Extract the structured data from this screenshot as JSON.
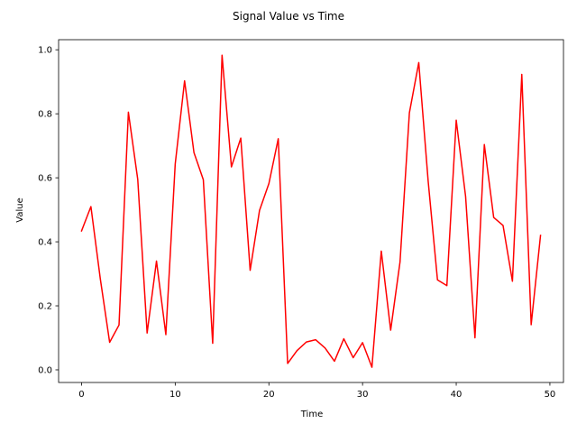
{
  "chart_data": {
    "type": "line",
    "title": "Signal Value vs Time",
    "xlabel": "Time",
    "ylabel": "Value",
    "xlim": [
      -2.45,
      51.45
    ],
    "ylim": [
      -0.0395,
      1.0315
    ],
    "xticks": [
      0,
      10,
      20,
      30,
      40,
      50
    ],
    "yticks": [
      0.0,
      0.2,
      0.4,
      0.6,
      0.8,
      1.0
    ],
    "xtick_labels": [
      "0",
      "10",
      "20",
      "30",
      "40",
      "50"
    ],
    "ytick_labels": [
      "0.0",
      "0.2",
      "0.4",
      "0.6",
      "0.8",
      "1.0"
    ],
    "grid": false,
    "series": [
      {
        "color": "#ff0000",
        "x": [
          0,
          1,
          2,
          3,
          4,
          5,
          6,
          7,
          8,
          9,
          10,
          11,
          12,
          13,
          14,
          15,
          16,
          17,
          18,
          19,
          20,
          21,
          22,
          23,
          24,
          25,
          26,
          27,
          28,
          29,
          30,
          31,
          32,
          33,
          34,
          35,
          36,
          37,
          38,
          39,
          40,
          41,
          42,
          43,
          44,
          45,
          46,
          47,
          48,
          49
        ],
        "values": [
          0.434,
          0.51,
          0.285,
          0.086,
          0.14,
          0.805,
          0.595,
          0.115,
          0.34,
          0.11,
          0.643,
          0.903,
          0.679,
          0.594,
          0.083,
          0.983,
          0.634,
          0.724,
          0.311,
          0.498,
          0.582,
          0.722,
          0.02,
          0.06,
          0.087,
          0.094,
          0.068,
          0.027,
          0.097,
          0.038,
          0.085,
          0.008,
          0.371,
          0.124,
          0.337,
          0.803,
          0.96,
          0.591,
          0.281,
          0.263,
          0.78,
          0.542,
          0.1,
          0.704,
          0.476,
          0.451,
          0.277,
          0.923,
          0.141,
          0.42
        ]
      }
    ]
  }
}
